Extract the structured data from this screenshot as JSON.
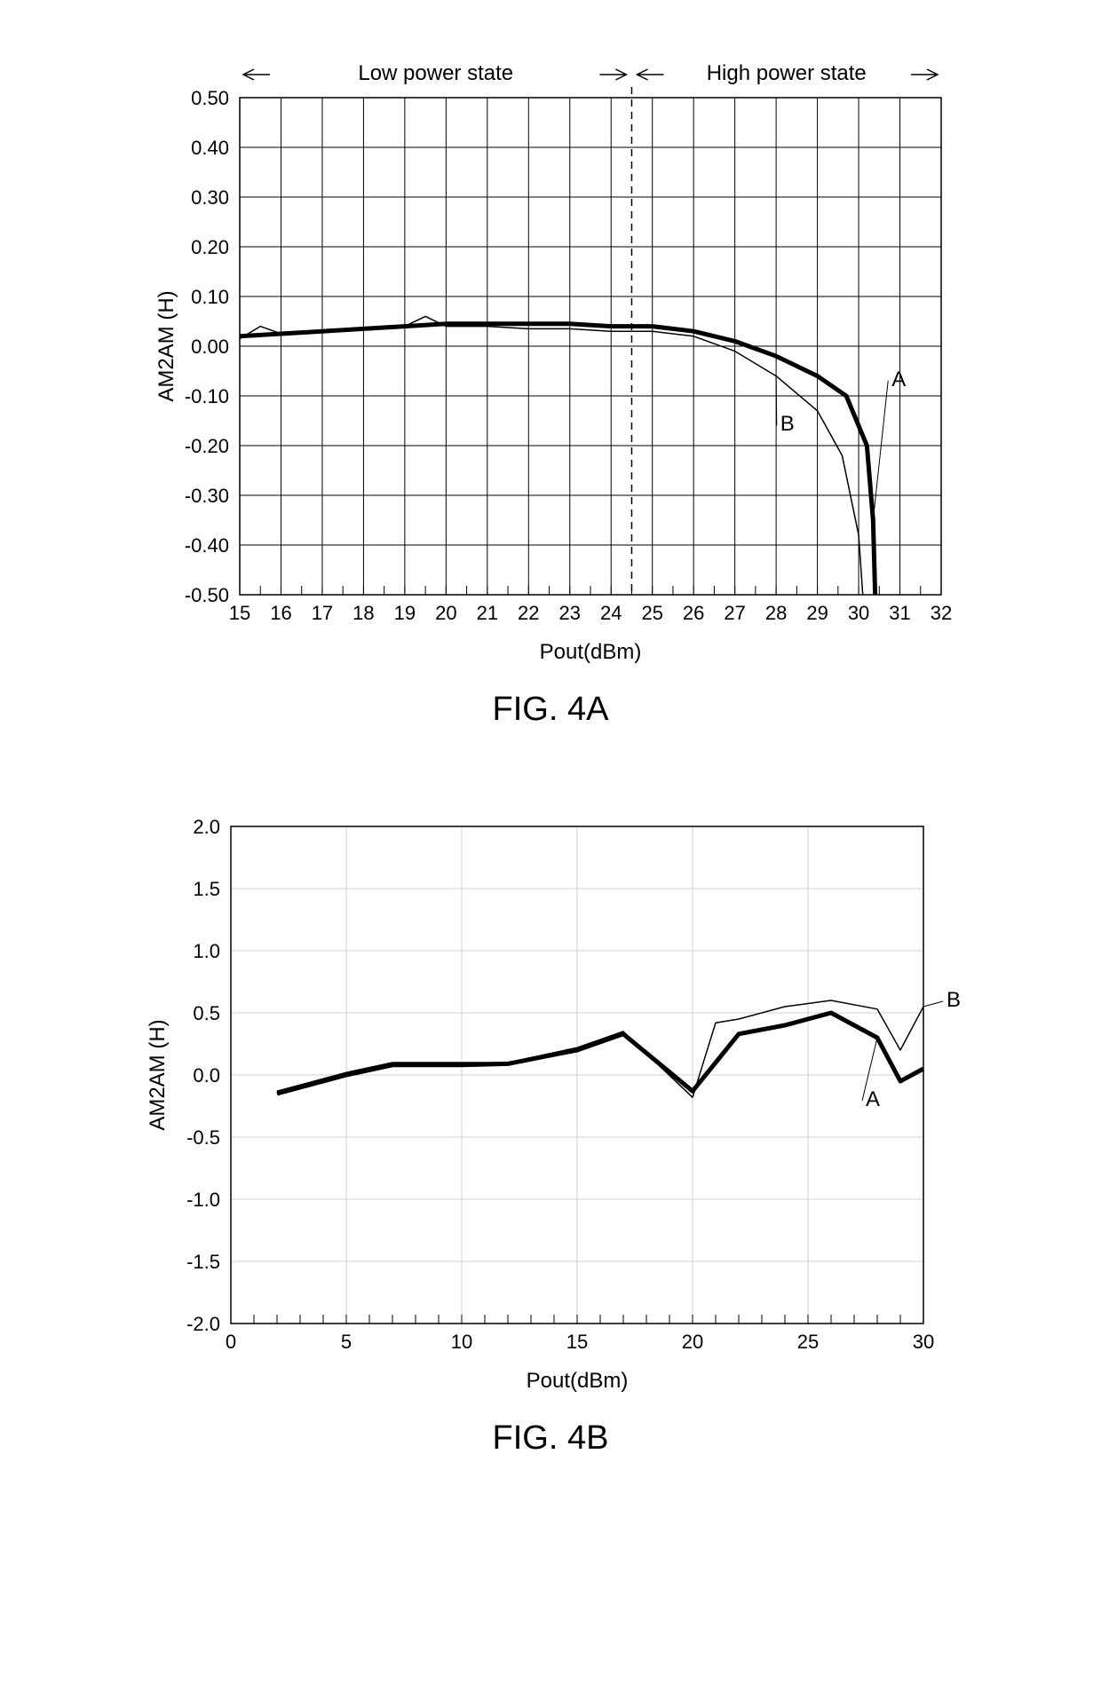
{
  "fig4a": {
    "type": "line",
    "caption": "FIG. 4A",
    "xlabel": "Pout(dBm)",
    "ylabel": "AM2AM (H)",
    "xlim": [
      15,
      32
    ],
    "ylim": [
      -0.5,
      0.5
    ],
    "xtick_step": 1,
    "ytick_step": 0.1,
    "xticks": [
      15,
      16,
      17,
      18,
      19,
      20,
      21,
      22,
      23,
      24,
      25,
      26,
      27,
      28,
      29,
      30,
      31,
      32
    ],
    "yticks": [
      0.5,
      0.4,
      0.3,
      0.2,
      0.1,
      0.0,
      -0.1,
      -0.2,
      -0.3,
      -0.4,
      -0.5
    ],
    "ytick_labels": [
      "0.50",
      "0.40",
      "0.30",
      "0.20",
      "0.10",
      "0.00",
      "-0.10",
      "-0.20",
      "-0.30",
      "-0.40",
      "-0.50"
    ],
    "grid_color": "#000000",
    "background_color": "#ffffff",
    "divider_x": 24.5,
    "region_left_label": "Low power state",
    "region_right_label": "High power state",
    "label_fontsize": 24,
    "tick_fontsize": 22,
    "minor_ticks_between_x": 1,
    "series": {
      "A": {
        "label": "A",
        "color": "#000000",
        "line_width": 5,
        "points": [
          [
            15,
            0.02
          ],
          [
            16,
            0.025
          ],
          [
            17,
            0.03
          ],
          [
            18,
            0.035
          ],
          [
            19,
            0.04
          ],
          [
            20,
            0.045
          ],
          [
            21,
            0.045
          ],
          [
            22,
            0.045
          ],
          [
            23,
            0.045
          ],
          [
            24,
            0.04
          ],
          [
            25,
            0.04
          ],
          [
            26,
            0.03
          ],
          [
            27,
            0.01
          ],
          [
            28,
            -0.02
          ],
          [
            29,
            -0.06
          ],
          [
            29.7,
            -0.1
          ],
          [
            30.2,
            -0.2
          ],
          [
            30.35,
            -0.35
          ],
          [
            30.4,
            -0.5
          ]
        ],
        "label_anchor": [
          30.8,
          -0.08
        ]
      },
      "B": {
        "label": "B",
        "color": "#000000",
        "line_width": 1.5,
        "points": [
          [
            15,
            0.015
          ],
          [
            15.5,
            0.04
          ],
          [
            16,
            0.025
          ],
          [
            17,
            0.03
          ],
          [
            18,
            0.035
          ],
          [
            19,
            0.04
          ],
          [
            19.5,
            0.06
          ],
          [
            20,
            0.04
          ],
          [
            21,
            0.04
          ],
          [
            22,
            0.035
          ],
          [
            23,
            0.035
          ],
          [
            24,
            0.03
          ],
          [
            25,
            0.03
          ],
          [
            26,
            0.02
          ],
          [
            27,
            -0.01
          ],
          [
            28,
            -0.06
          ],
          [
            29,
            -0.13
          ],
          [
            29.6,
            -0.22
          ],
          [
            30.0,
            -0.38
          ],
          [
            30.1,
            -0.5
          ]
        ],
        "label_anchor": [
          28.1,
          -0.17
        ]
      }
    }
  },
  "fig4b": {
    "type": "line",
    "caption": "FIG. 4B",
    "xlabel": "Pout(dBm)",
    "ylabel": "AM2AM (H)",
    "xlim": [
      0,
      30
    ],
    "ylim": [
      -2.0,
      2.0
    ],
    "xtick_step": 5,
    "ytick_step": 0.5,
    "xticks": [
      0,
      5,
      10,
      15,
      20,
      25,
      30
    ],
    "yticks": [
      2.0,
      1.5,
      1.0,
      0.5,
      0.0,
      -0.5,
      -1.0,
      -1.5,
      -2.0
    ],
    "ytick_labels": [
      "2.0",
      "1.5",
      "1.0",
      "0.5",
      "0.0",
      "-0.5",
      "-1.0",
      "-1.5",
      "-2.0"
    ],
    "grid_color": "#d0d0d0",
    "background_color": "#ffffff",
    "label_fontsize": 24,
    "tick_fontsize": 22,
    "minor_ticks_between_x": 5,
    "minor_ticks_between_y": 0,
    "series": {
      "A": {
        "label": "A",
        "color": "#000000",
        "line_width": 5,
        "points": [
          [
            2,
            -0.15
          ],
          [
            5,
            0.0
          ],
          [
            7,
            0.08
          ],
          [
            10,
            0.08
          ],
          [
            12,
            0.09
          ],
          [
            15,
            0.2
          ],
          [
            17,
            0.33
          ],
          [
            20,
            -0.13
          ],
          [
            22,
            0.33
          ],
          [
            24,
            0.4
          ],
          [
            26,
            0.5
          ],
          [
            28,
            0.3
          ],
          [
            29,
            -0.05
          ],
          [
            30,
            0.05
          ]
        ],
        "label_anchor": [
          27.5,
          -0.25
        ]
      },
      "B": {
        "label": "B",
        "color": "#000000",
        "line_width": 1.5,
        "points": [
          [
            2,
            -0.13
          ],
          [
            5,
            0.02
          ],
          [
            7,
            0.1
          ],
          [
            10,
            0.1
          ],
          [
            12,
            0.1
          ],
          [
            15,
            0.22
          ],
          [
            17,
            0.35
          ],
          [
            20,
            -0.18
          ],
          [
            21,
            0.42
          ],
          [
            22,
            0.45
          ],
          [
            24,
            0.55
          ],
          [
            26,
            0.6
          ],
          [
            28,
            0.53
          ],
          [
            29,
            0.2
          ],
          [
            30,
            0.55
          ]
        ],
        "label_anchor": [
          31.0,
          0.55
        ]
      }
    }
  }
}
